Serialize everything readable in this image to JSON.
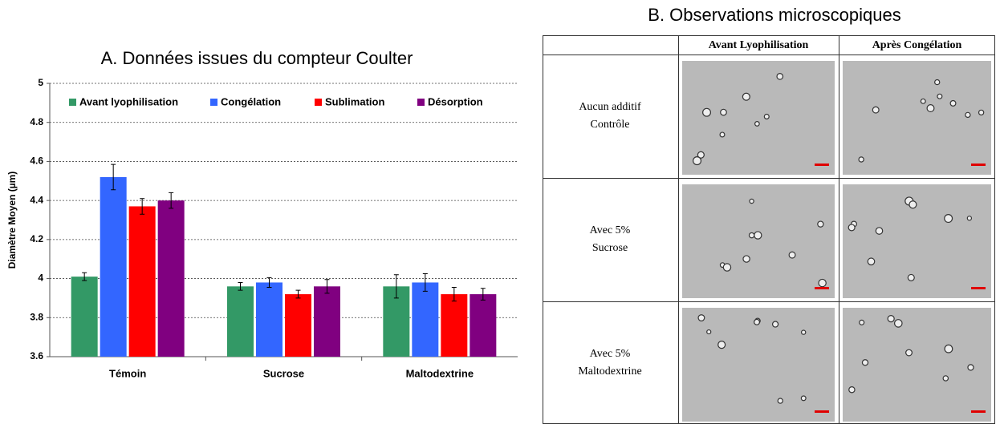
{
  "chart_data": {
    "type": "bar",
    "title": "A. Données issues du compteur Coulter",
    "y_label": "Diamètre Moyen (µm)",
    "categories": [
      "Témoin",
      "Sucrose",
      "Maltodextrine"
    ],
    "series": [
      {
        "name": "Avant lyophilisation",
        "color": "#339966",
        "values": [
          4.01,
          3.96,
          3.96
        ],
        "errors": [
          0.02,
          0.02,
          0.06
        ]
      },
      {
        "name": "Congélation",
        "color": "#3366ff",
        "values": [
          4.52,
          3.98,
          3.98
        ],
        "errors": [
          0.065,
          0.025,
          0.045
        ]
      },
      {
        "name": "Sublimation",
        "color": "#ff0000",
        "values": [
          4.37,
          3.92,
          3.92
        ],
        "errors": [
          0.04,
          0.02,
          0.035
        ]
      },
      {
        "name": "Désorption",
        "color": "#800080",
        "values": [
          4.4,
          3.96,
          3.92
        ],
        "errors": [
          0.04,
          0.035,
          0.03
        ]
      }
    ],
    "ylim": [
      3.6,
      5
    ],
    "yticks": [
      3.6,
      3.8,
      4,
      4.2,
      4.4,
      4.6,
      4.8,
      5
    ],
    "grid": true,
    "legend": "top"
  },
  "microscopy": {
    "title": "B. Observations microscopiques",
    "headers": [
      "Avant Lyophilisation",
      "Après Congélation"
    ],
    "row_labels": [
      [
        "Aucun additif",
        "Contrôle"
      ],
      [
        "Avec 5%",
        "Sucrose"
      ],
      [
        "Avec 5%",
        "Maltodextrine"
      ]
    ]
  }
}
